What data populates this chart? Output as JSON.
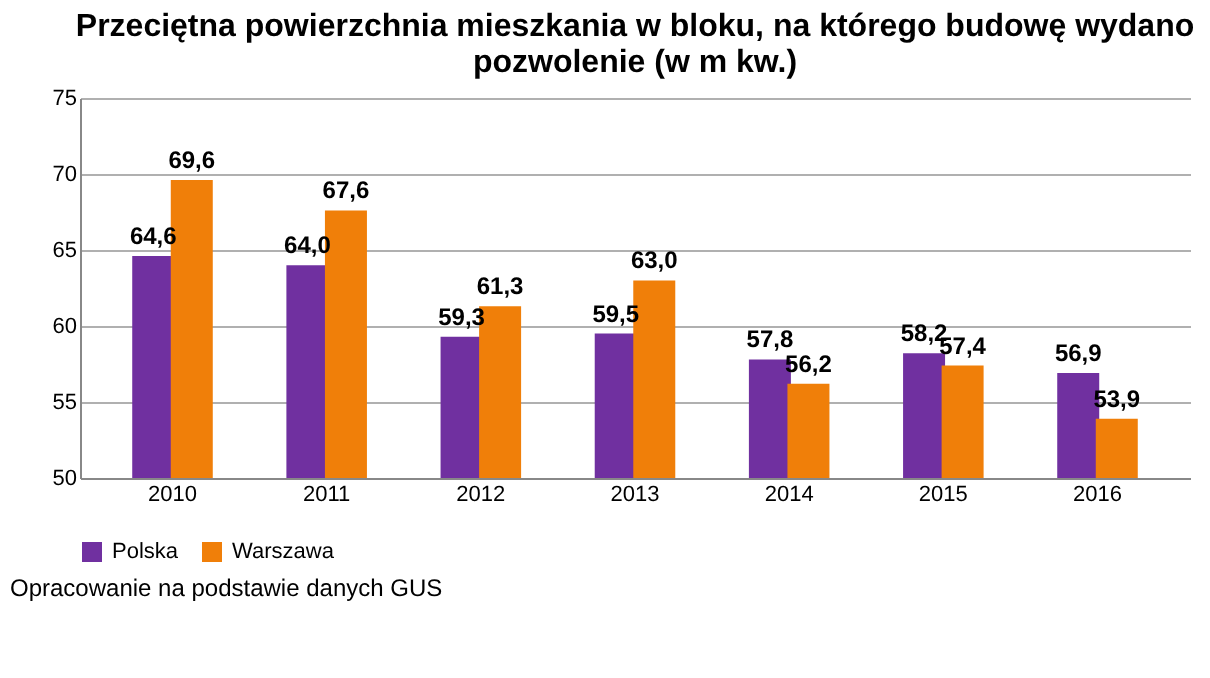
{
  "chart_data": {
    "type": "bar",
    "title": "Przeciętna powierzchnia mieszkania w bloku, na którego budowę wydano\npozwolenie (w m kw.)",
    "categories": [
      "2010",
      "2011",
      "2012",
      "2013",
      "2014",
      "2015",
      "2016"
    ],
    "series": [
      {
        "name": "Polska",
        "color": "#7030a0",
        "values": [
          64.6,
          64.0,
          59.3,
          59.5,
          57.8,
          58.2,
          56.9
        ],
        "value_labels": [
          "64,6",
          "64,0",
          "59,3",
          "59,5",
          "57,8",
          "58,2",
          "56,9"
        ]
      },
      {
        "name": "Warszawa",
        "color": "#f07f09",
        "values": [
          69.6,
          67.6,
          61.3,
          63.0,
          56.2,
          57.4,
          53.9
        ],
        "value_labels": [
          "69,6",
          "67,6",
          "61,3",
          "63,0",
          "56,2",
          "57,4",
          "53,9"
        ]
      }
    ],
    "ylim": [
      50,
      75
    ],
    "yticks": [
      50,
      55,
      60,
      65,
      70,
      75
    ],
    "grid": "y",
    "legend": "bottom",
    "annotations": [
      "Opracowanie na podstawie danych GUS"
    ]
  }
}
